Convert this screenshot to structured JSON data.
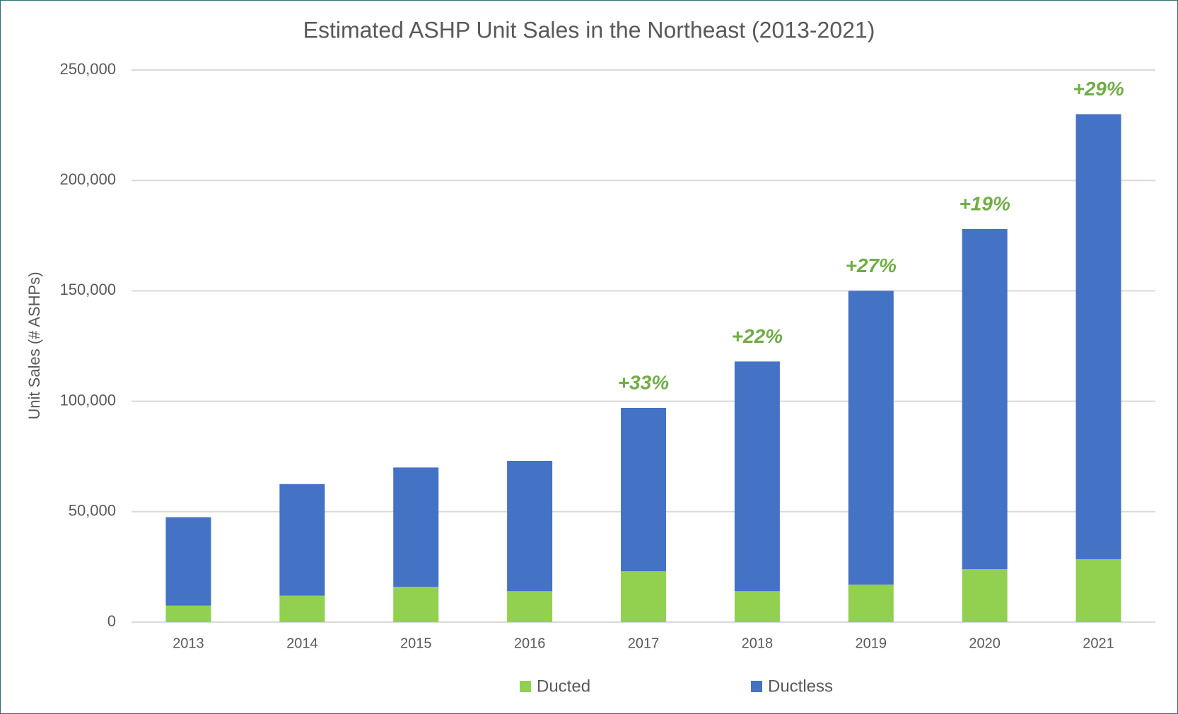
{
  "chart_data": {
    "type": "stacked_bar",
    "title": "Estimated ASHP Unit Sales in the Northeast (2013-2021)",
    "y_label": "Unit Sales (# ASHPs)",
    "categories": [
      "2013",
      "2014",
      "2015",
      "2016",
      "2017",
      "2018",
      "2019",
      "2020",
      "2021"
    ],
    "series": [
      {
        "name": "Ducted",
        "color": "#92d050",
        "values": [
          7500,
          12000,
          16000,
          14000,
          23000,
          14000,
          17000,
          24000,
          28500
        ]
      },
      {
        "name": "Ductless",
        "color": "#4472c4",
        "values": [
          40000,
          50500,
          54000,
          59000,
          74000,
          104000,
          133000,
          154000,
          201500
        ]
      }
    ],
    "annotations": [
      {
        "x": "2017",
        "text": "+33%"
      },
      {
        "x": "2018",
        "text": "+22%"
      },
      {
        "x": "2019",
        "text": "+27%"
      },
      {
        "x": "2020",
        "text": "+19%"
      },
      {
        "x": "2021",
        "text": "+29%"
      }
    ],
    "annotation_color": "#70ad47",
    "ylim": [
      0,
      250000
    ],
    "yticks": [
      0,
      {
        "value": 50000,
        "label": "50,000"
      },
      {
        "value": 100000,
        "label": "100,000"
      },
      {
        "value": 150000,
        "label": "150,000"
      },
      {
        "value": 200000,
        "label": "200,000"
      },
      {
        "value": 250000,
        "label": "250,000"
      }
    ],
    "grid": true,
    "legend": "bottom"
  }
}
